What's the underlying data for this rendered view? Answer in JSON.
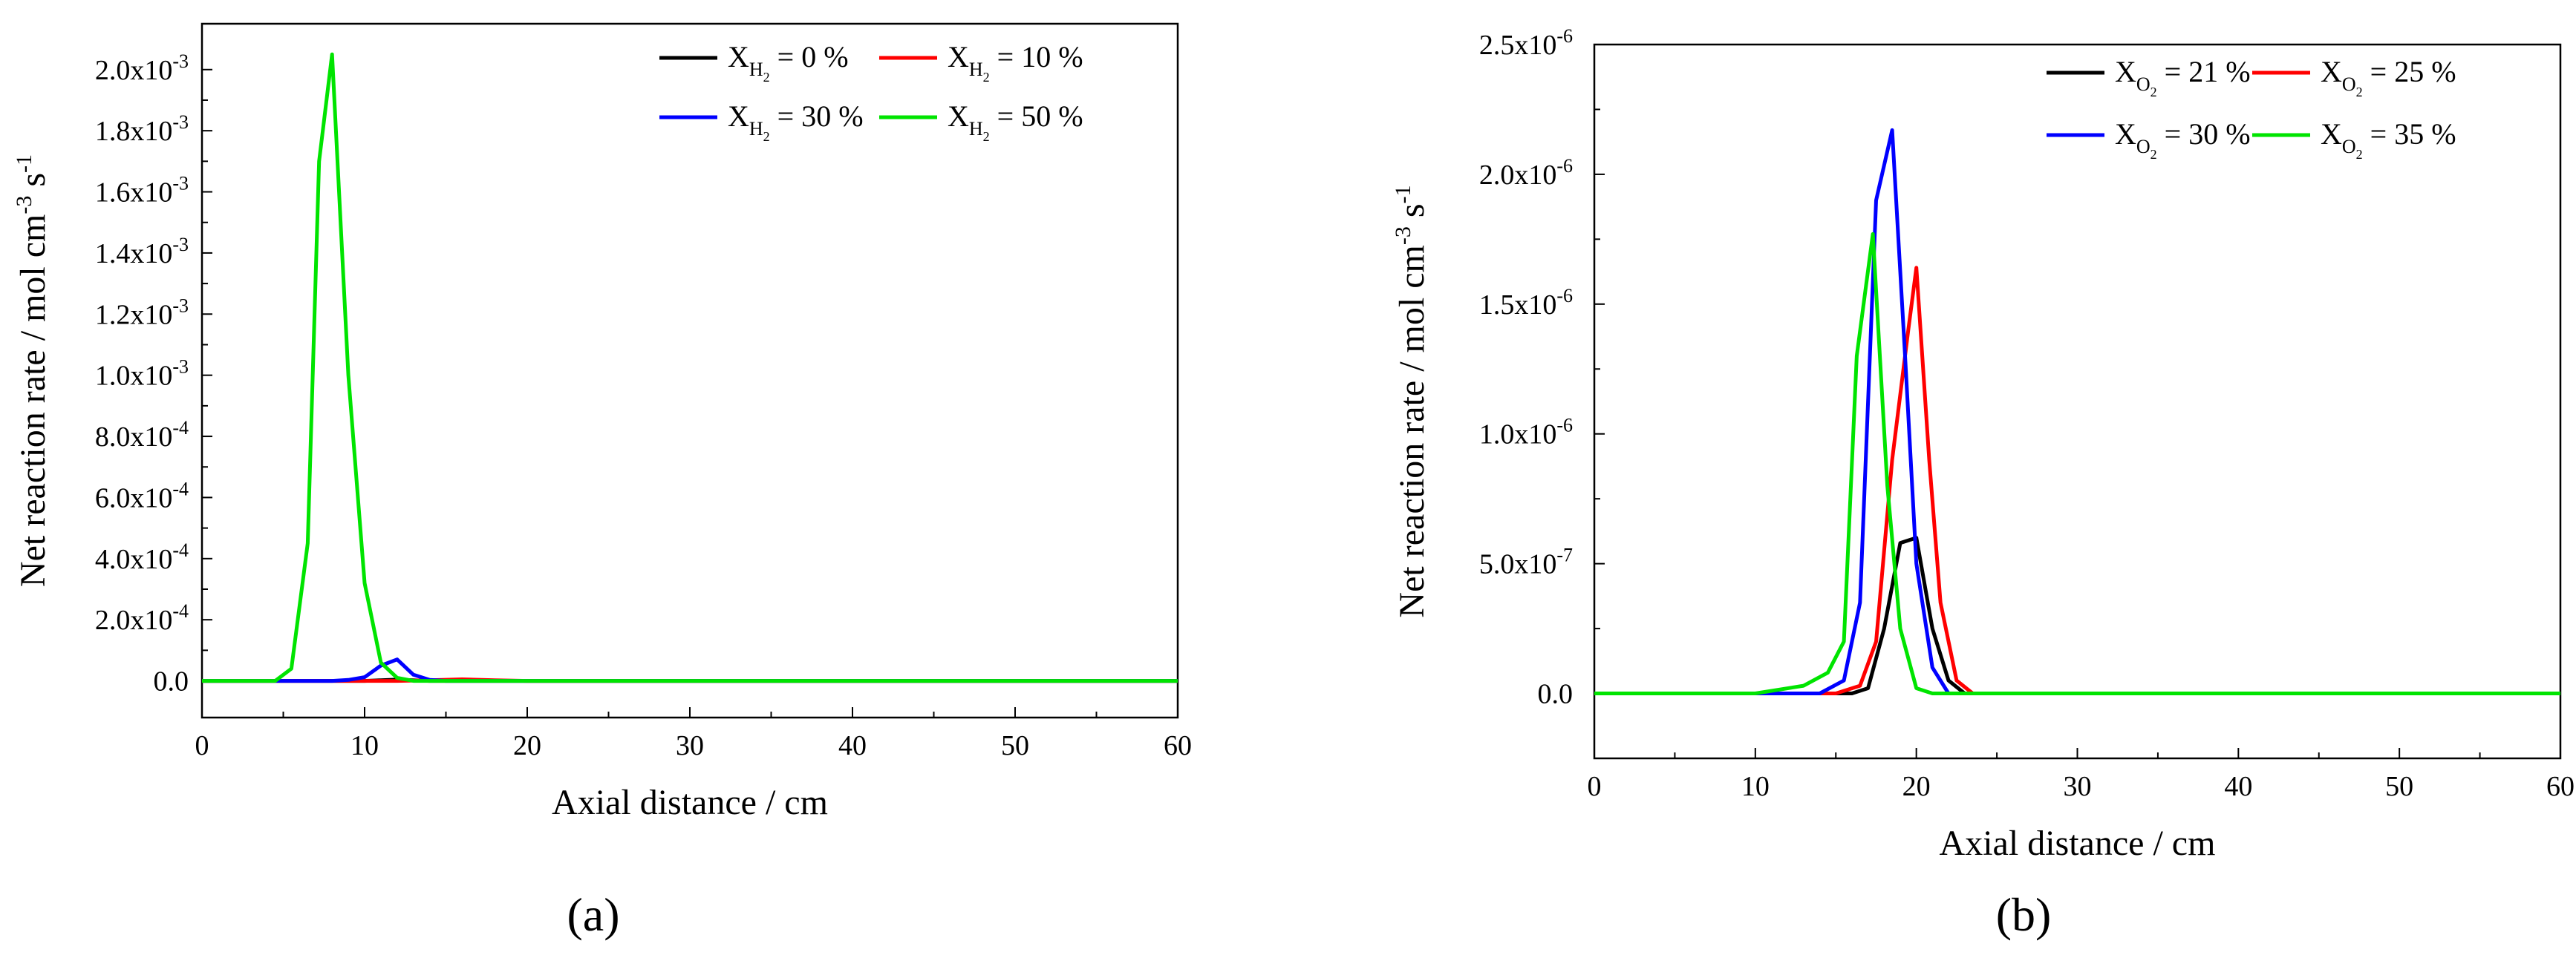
{
  "chart_data": [
    {
      "id": "a",
      "type": "line",
      "panel_label": "(a)",
      "xlabel": "Axial distance / cm",
      "ylabel_main": "Net reaction rate / mol cm",
      "ylabel_exp1": "-3",
      "ylabel_mid": " s",
      "ylabel_exp2": "-1",
      "xlim": [
        0,
        60
      ],
      "ylim": [
        -0.00012,
        0.00215
      ],
      "xticks": [
        0,
        10,
        20,
        30,
        40,
        50,
        60
      ],
      "xtick_labels": [
        "0",
        "10",
        "20",
        "30",
        "40",
        "50",
        "60"
      ],
      "yticks": [
        0,
        0.0002,
        0.0004,
        0.0006,
        0.0008,
        0.001,
        0.0012,
        0.0014,
        0.0016,
        0.0018,
        0.002
      ],
      "ytick_mantissas": [
        "0.0",
        "2.0x10",
        "4.0x10",
        "6.0x10",
        "8.0x10",
        "1.0x10",
        "1.2x10",
        "1.4x10",
        "1.6x10",
        "1.8x10",
        "2.0x10"
      ],
      "ytick_exps": [
        "",
        "-4",
        "-4",
        "-4",
        "-4",
        "-3",
        "-3",
        "-3",
        "-3",
        "-3",
        "-3"
      ],
      "legend_position": "top-right",
      "series": [
        {
          "name_base": "X",
          "name_sub": "H",
          "name_subsub": "2",
          "name_rest": " = 0 %",
          "color": "#000000",
          "x": [
            0,
            10,
            11,
            12,
            13,
            14,
            60
          ],
          "y": [
            0,
            0,
            2e-06,
            4e-06,
            2e-06,
            0,
            0
          ]
        },
        {
          "name_base": "X",
          "name_sub": "H",
          "name_subsub": "2",
          "name_rest": " = 10 %",
          "color": "#ff0000",
          "x": [
            0,
            12,
            14,
            16,
            18,
            20,
            60
          ],
          "y": [
            0,
            0,
            2e-06,
            5e-06,
            2e-06,
            0,
            0
          ]
        },
        {
          "name_base": "X",
          "name_sub": "H",
          "name_subsub": "2",
          "name_rest": " = 30 %",
          "color": "#0000ff",
          "x": [
            0,
            8,
            9,
            10,
            11,
            12,
            13,
            14,
            15,
            60
          ],
          "y": [
            0,
            0,
            3e-06,
            1.2e-05,
            5e-05,
            7e-05,
            2e-05,
            3e-06,
            0,
            0
          ]
        },
        {
          "name_base": "X",
          "name_sub": "H",
          "name_subsub": "2",
          "name_rest": " = 50 %",
          "color": "#00e400",
          "x": [
            0,
            4.5,
            5.5,
            6.5,
            7.2,
            8,
            9,
            10,
            11,
            12,
            13,
            60
          ],
          "y": [
            0,
            0,
            4e-05,
            0.00045,
            0.0017,
            0.00205,
            0.001,
            0.00032,
            6e-05,
            1e-05,
            0,
            0
          ]
        }
      ]
    },
    {
      "id": "b",
      "type": "line",
      "panel_label": "(b)",
      "xlabel": "Axial distance / cm",
      "ylabel_main": "Net reaction rate / mol cm",
      "ylabel_exp1": "-3",
      "ylabel_mid": " s",
      "ylabel_exp2": "-1",
      "xlim": [
        0,
        60
      ],
      "ylim": [
        -2.5e-07,
        2.5e-06
      ],
      "xticks": [
        0,
        10,
        20,
        30,
        40,
        50,
        60
      ],
      "xtick_labels": [
        "0",
        "10",
        "20",
        "30",
        "40",
        "50",
        "60"
      ],
      "yticks": [
        0,
        5e-07,
        1e-06,
        1.5e-06,
        2e-06,
        2.5e-06
      ],
      "ytick_mantissas": [
        "0.0",
        "5.0x10",
        "1.0x10",
        "1.5x10",
        "2.0x10",
        "2.5x10"
      ],
      "ytick_exps": [
        "",
        "-7",
        "-6",
        "-6",
        "-6",
        "-6"
      ],
      "legend_position": "top-right",
      "series": [
        {
          "name_base": "X",
          "name_sub": "O",
          "name_subsub": "2",
          "name_rest": " = 21 %",
          "color": "#000000",
          "x": [
            0,
            16,
            17,
            18,
            19,
            20,
            21,
            22,
            23,
            60
          ],
          "y": [
            0,
            0,
            2e-08,
            2.5e-07,
            5.8e-07,
            6e-07,
            2.5e-07,
            5e-08,
            0,
            0
          ]
        },
        {
          "name_base": "X",
          "name_sub": "O",
          "name_subsub": "2",
          "name_rest": " = 25 %",
          "color": "#ff0000",
          "x": [
            0,
            15,
            16.5,
            17.5,
            18.5,
            19.5,
            20,
            20.8,
            21.5,
            22.5,
            23.5,
            60
          ],
          "y": [
            0,
            0,
            3e-08,
            2e-07,
            9e-07,
            1.4e-06,
            1.64e-06,
            9e-07,
            3.5e-07,
            5e-08,
            0,
            0
          ]
        },
        {
          "name_base": "X",
          "name_sub": "O",
          "name_subsub": "2",
          "name_rest": " = 30 %",
          "color": "#0000ff",
          "x": [
            0,
            14,
            15.5,
            16.5,
            17.5,
            18.5,
            19.3,
            20,
            21,
            22,
            60
          ],
          "y": [
            0,
            0,
            5e-08,
            3.5e-07,
            1.9e-06,
            2.17e-06,
            1.3e-06,
            5e-07,
            1e-07,
            0,
            0
          ]
        },
        {
          "name_base": "X",
          "name_sub": "O",
          "name_subsub": "2",
          "name_rest": " = 35 %",
          "color": "#00e400",
          "x": [
            0,
            10,
            13,
            14.5,
            15.5,
            16.3,
            17.3,
            18.2,
            19,
            20,
            21,
            60
          ],
          "y": [
            0,
            0,
            3e-08,
            8e-08,
            2e-07,
            1.3e-06,
            1.77e-06,
            8e-07,
            2.5e-07,
            2e-08,
            0,
            0
          ]
        }
      ]
    }
  ]
}
